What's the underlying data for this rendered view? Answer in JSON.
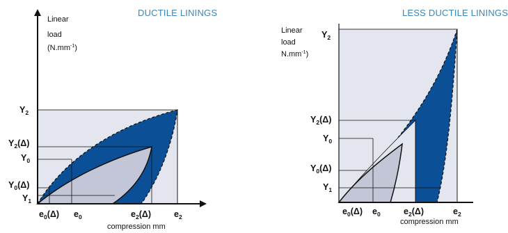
{
  "left": {
    "title": "DUCTILE LININGS",
    "axis_label": {
      "line1": "Linear",
      "line2": "load",
      "line3": "(N.mm",
      "sup": "-1",
      "close": ")"
    },
    "y_ticks": {
      "y2": {
        "base": "Y",
        "sub": "2"
      },
      "y2d": {
        "base": "Y",
        "sub": "2",
        "tail": "(Δ)"
      },
      "y0": {
        "base": "Y",
        "sub": "0"
      },
      "y0d": {
        "base": "Y",
        "sub": "0",
        "tail": "(Δ)"
      },
      "y1": {
        "base": "Y",
        "sub": "1"
      }
    },
    "x_ticks": {
      "e0d": {
        "base": "e",
        "sub": "0",
        "tail": "(Δ)"
      },
      "e0": {
        "base": "e",
        "sub": "0"
      },
      "e2d": {
        "base": "e",
        "sub": "2",
        "tail": "(Δ)"
      },
      "e2": {
        "base": "e",
        "sub": "2"
      }
    },
    "x_axis_label": "compression mm"
  },
  "right": {
    "title": "LESS DUCTILE LININGS",
    "axis_label": {
      "line1": "Linear",
      "line2": "load",
      "line3": "N.mm",
      "sup": "-1",
      "close": ")"
    },
    "y_ticks": {
      "y2": {
        "base": "Y",
        "sub": "2"
      },
      "y2d": {
        "base": "Y",
        "sub": "2",
        "tail": "(Δ)"
      },
      "y0": {
        "base": "Y",
        "sub": "0"
      },
      "y0d": {
        "base": "Y",
        "sub": "0",
        "tail": "(Δ)"
      },
      "y1": {
        "base": "Y",
        "sub": "1"
      }
    },
    "x_ticks": {
      "e0d": {
        "base": "e",
        "sub": "0",
        "tail": "(Δ)"
      },
      "e0": {
        "base": "e",
        "sub": "0"
      },
      "e2d": {
        "base": "e",
        "sub": "2",
        "tail": "(Δ)"
      },
      "e2": {
        "base": "e",
        "sub": "2"
      }
    },
    "x_axis_label": "compression mm"
  },
  "colors": {
    "envelope_fill": "#e3e6ef",
    "dark_band": "#0b4f96",
    "light_area": "#c3c6d6",
    "line": "#111111",
    "title": "#3a86b8"
  }
}
